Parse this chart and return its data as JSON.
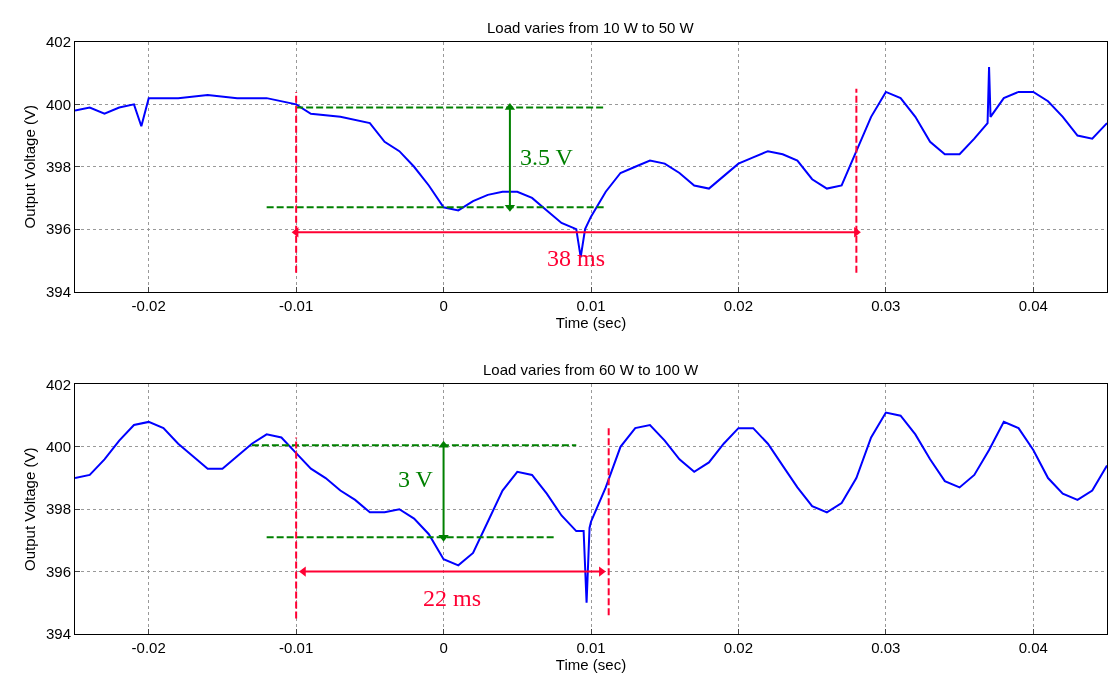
{
  "chart_data": [
    {
      "type": "line",
      "title": "Load varies from 10 W to 50 W",
      "xlabel": "Time (sec)",
      "ylabel": "Output Voltage (V)",
      "xlim": [
        -0.025,
        0.045
      ],
      "ylim": [
        394,
        402
      ],
      "xticks": [
        -0.02,
        -0.01,
        0,
        0.01,
        0.02,
        0.03,
        0.04
      ],
      "yticks": [
        394,
        396,
        398,
        400,
        402
      ],
      "grid": true,
      "x": [
        -0.025,
        -0.024,
        -0.023,
        -0.022,
        -0.021,
        -0.0205,
        -0.02,
        -0.018,
        -0.016,
        -0.014,
        -0.012,
        -0.01,
        -0.009,
        -0.007,
        -0.005,
        -0.004,
        -0.003,
        -0.002,
        -0.001,
        0,
        0.001,
        0.002,
        0.003,
        0.004,
        0.005,
        0.006,
        0.007,
        0.008,
        0.009,
        0.0093,
        0.0096,
        0.01,
        0.011,
        0.012,
        0.013,
        0.014,
        0.015,
        0.016,
        0.017,
        0.018,
        0.019,
        0.02,
        0.021,
        0.022,
        0.023,
        0.024,
        0.025,
        0.026,
        0.027,
        0.028,
        0.029,
        0.03,
        0.031,
        0.032,
        0.033,
        0.034,
        0.035,
        0.036,
        0.0369,
        0.037,
        0.0371,
        0.038,
        0.039,
        0.04,
        0.041,
        0.042,
        0.043,
        0.044,
        0.045
      ],
      "series": [
        {
          "color": "#0000ff",
          "values": [
            399.8,
            399.9,
            399.7,
            399.9,
            400.0,
            399.3,
            400.2,
            400.2,
            400.3,
            400.2,
            400.2,
            400.0,
            399.7,
            399.6,
            399.4,
            398.8,
            398.5,
            398.0,
            397.4,
            396.7,
            396.6,
            396.9,
            397.1,
            397.2,
            397.2,
            397.0,
            396.6,
            396.2,
            396.0,
            395.1,
            396.0,
            396.4,
            397.2,
            397.8,
            398.0,
            398.2,
            398.1,
            397.8,
            397.4,
            397.3,
            397.7,
            398.1,
            398.3,
            398.5,
            398.4,
            398.2,
            397.6,
            397.3,
            397.4,
            398.5,
            399.6,
            400.4,
            400.2,
            399.6,
            398.8,
            398.4,
            398.4,
            398.9,
            399.4,
            401.2,
            399.6,
            400.2,
            400.4,
            400.4,
            400.1,
            399.6,
            399.0,
            398.9,
            399.4
          ]
        },
        {
          "type": "line",
          "color": "#008000",
          "line_style": "dashed",
          "x": [
            -0.01,
            0.011
          ],
          "values": [
            399.9,
            399.9
          ]
        },
        {
          "type": "line",
          "color": "#008000",
          "line_style": "dashed",
          "x": [
            -0.012,
            0.011
          ],
          "values": [
            396.7,
            396.7
          ]
        },
        {
          "type": "line",
          "color": "#ff0033",
          "line_style": "dashed",
          "x": [
            -0.01,
            -0.01
          ],
          "values": [
            394.6,
            400.4
          ]
        },
        {
          "type": "line",
          "color": "#ff0033",
          "line_style": "dashed",
          "x": [
            0.028,
            0.028
          ],
          "values": [
            394.6,
            400.5
          ]
        },
        {
          "type": "line",
          "color": "#008000",
          "marker": "triangle",
          "x": [
            0.0045,
            0.0045
          ],
          "values": [
            399.9,
            396.7
          ]
        },
        {
          "type": "line",
          "color": "#ff0033",
          "marker": "triangle",
          "x": [
            -0.01,
            0.028
          ],
          "values": [
            395.9,
            395.9
          ]
        }
      ],
      "annotations": [
        "3.5 V",
        "38 ms"
      ]
    },
    {
      "type": "line",
      "title": "Load varies from 60 W to 100 W",
      "xlabel": "Time (sec)",
      "ylabel": "Output Voltage (V)",
      "xlim": [
        -0.025,
        0.045
      ],
      "ylim": [
        394,
        402
      ],
      "xticks": [
        -0.02,
        -0.01,
        0,
        0.01,
        0.02,
        0.03,
        0.04
      ],
      "yticks": [
        394,
        396,
        398,
        400,
        402
      ],
      "grid": true,
      "x": [
        -0.025,
        -0.024,
        -0.023,
        -0.022,
        -0.021,
        -0.02,
        -0.019,
        -0.018,
        -0.017,
        -0.016,
        -0.015,
        -0.014,
        -0.013,
        -0.012,
        -0.011,
        -0.01,
        -0.009,
        -0.008,
        -0.007,
        -0.006,
        -0.005,
        -0.004,
        -0.003,
        -0.002,
        -0.001,
        0,
        0.001,
        0.002,
        0.003,
        0.004,
        0.005,
        0.006,
        0.007,
        0.008,
        0.009,
        0.0095,
        0.0097,
        0.0099,
        0.01,
        0.011,
        0.012,
        0.013,
        0.014,
        0.015,
        0.016,
        0.017,
        0.018,
        0.019,
        0.02,
        0.021,
        0.022,
        0.023,
        0.024,
        0.025,
        0.026,
        0.027,
        0.028,
        0.029,
        0.03,
        0.031,
        0.032,
        0.033,
        0.034,
        0.035,
        0.036,
        0.037,
        0.038,
        0.039,
        0.04,
        0.041,
        0.042,
        0.043,
        0.044,
        0.045
      ],
      "series": [
        {
          "color": "#0000ff",
          "values": [
            399.0,
            399.1,
            399.6,
            400.2,
            400.7,
            400.8,
            400.6,
            400.1,
            399.7,
            399.3,
            399.3,
            399.7,
            400.1,
            400.4,
            400.3,
            399.8,
            399.3,
            399.0,
            398.6,
            398.3,
            397.9,
            397.9,
            398.0,
            397.7,
            397.2,
            396.4,
            396.2,
            396.6,
            397.6,
            398.6,
            399.2,
            399.1,
            398.5,
            397.8,
            397.3,
            397.3,
            395.0,
            397.4,
            397.6,
            398.7,
            400.0,
            400.6,
            400.7,
            400.2,
            399.6,
            399.2,
            399.5,
            400.1,
            400.6,
            400.6,
            400.1,
            399.4,
            398.7,
            398.1,
            397.9,
            398.2,
            399.0,
            400.3,
            401.1,
            401.0,
            400.4,
            399.6,
            398.9,
            398.7,
            399.1,
            399.9,
            400.8,
            400.6,
            399.9,
            399.0,
            398.5,
            398.3,
            398.6,
            399.4
          ]
        },
        {
          "type": "line",
          "color": "#008000",
          "line_style": "dashed",
          "x": [
            -0.013,
            0.009
          ],
          "values": [
            400.05,
            400.05
          ]
        },
        {
          "type": "line",
          "color": "#008000",
          "line_style": "dashed",
          "x": [
            -0.012,
            0.0075
          ],
          "values": [
            397.1,
            397.1
          ]
        },
        {
          "type": "line",
          "color": "#ff0033",
          "line_style": "dashed",
          "x": [
            -0.01,
            -0.01
          ],
          "values": [
            394.5,
            400.3
          ]
        },
        {
          "type": "line",
          "color": "#ff0033",
          "line_style": "dashed",
          "x": [
            0.0112,
            0.0112
          ],
          "values": [
            394.6,
            400.6
          ]
        },
        {
          "type": "line",
          "color": "#008000",
          "marker": "triangle",
          "x": [
            0.0,
            0.0
          ],
          "values": [
            400.05,
            397.1
          ]
        },
        {
          "type": "line",
          "color": "#ff0033",
          "marker": "triangle",
          "x": [
            -0.0095,
            0.0107
          ],
          "values": [
            396.0,
            396.0
          ]
        }
      ],
      "annotations": [
        "3 V",
        "22 ms"
      ]
    }
  ]
}
